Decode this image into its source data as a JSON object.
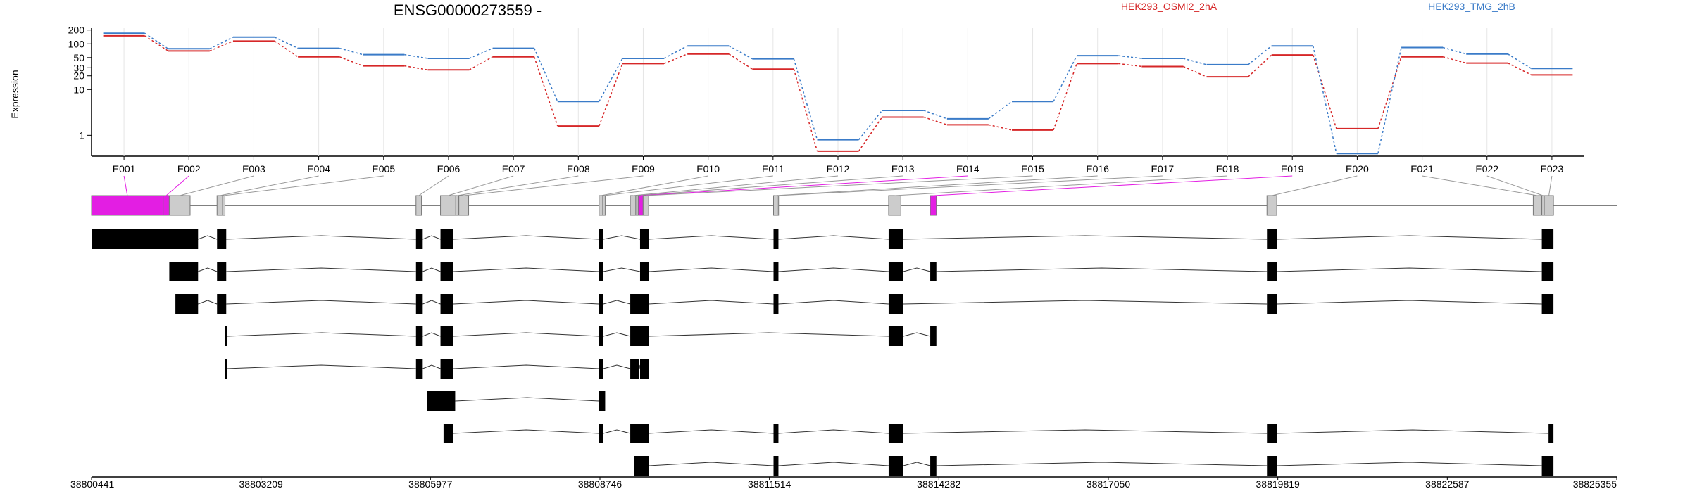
{
  "title": "ENSG00000273559 -",
  "legend": [
    {
      "label": "HEK293_OSMI2_2hA",
      "color": "#d62728"
    },
    {
      "label": "HEK293_TMG_2hB",
      "color": "#3a7bc8"
    }
  ],
  "colors": {
    "highlight": "#e31ee3",
    "exon_box": "#cccccc",
    "transcript": "#000000"
  },
  "chart_data": {
    "type": "line",
    "ylabel": "Expression",
    "y_scale": "log",
    "ylim": [
      0.35,
      220
    ],
    "y_ticks": [
      1,
      10,
      20,
      30,
      50,
      100,
      200
    ],
    "y_tick_labels": [
      "1",
      "10",
      "20",
      "30",
      "50",
      "100",
      "200"
    ],
    "categories": [
      "E001",
      "E002",
      "E003",
      "E004",
      "E005",
      "E006",
      "E007",
      "E008",
      "E009",
      "E010",
      "E011",
      "E012",
      "E013",
      "E014",
      "E015",
      "E016",
      "E017",
      "E018",
      "E019",
      "E020",
      "E021",
      "E022",
      "E023"
    ],
    "series": [
      {
        "name": "HEK293_OSMI2_2hA",
        "color": "#d62728",
        "values": [
          150,
          70,
          115,
          52,
          33,
          27,
          52,
          1.6,
          37,
          60,
          28,
          0.45,
          2.5,
          1.7,
          1.3,
          37,
          32,
          19,
          57,
          1.4,
          52,
          38,
          21
        ]
      },
      {
        "name": "HEK293_TMG_2hB",
        "color": "#3a7bc8",
        "values": [
          170,
          78,
          140,
          80,
          58,
          48,
          80,
          5.5,
          48,
          90,
          47,
          0.8,
          3.5,
          2.3,
          5.5,
          55,
          48,
          35,
          90,
          0.4,
          83,
          60,
          29
        ]
      }
    ]
  },
  "gene_model": {
    "coord_min": 38800441,
    "coord_max": 38825355,
    "axis_ticks": [
      "38800441",
      "38803209",
      "38805977",
      "38808746",
      "38811514",
      "38814282",
      "38817050",
      "38819819",
      "38822587",
      "38825355"
    ],
    "exon_segments": [
      {
        "id": "E001",
        "start": 38800441,
        "end": 38801611,
        "highlight": true
      },
      {
        "id": "E002",
        "start": 38801611,
        "end": 38801711,
        "highlight": true
      },
      {
        "id": "E003",
        "start": 38801711,
        "end": 38802051,
        "highlight": false
      },
      {
        "id": "E004",
        "start": 38802491,
        "end": 38802581,
        "highlight": false
      },
      {
        "id": "E005",
        "start": 38802581,
        "end": 38802621,
        "highlight": false
      },
      {
        "id": "E006",
        "start": 38805741,
        "end": 38805831,
        "highlight": false
      },
      {
        "id": "E007",
        "start": 38806141,
        "end": 38806391,
        "highlight": false
      },
      {
        "id": "E008",
        "start": 38806391,
        "end": 38806441,
        "highlight": false
      },
      {
        "id": "E009",
        "start": 38806441,
        "end": 38806601,
        "highlight": false
      },
      {
        "id": "E010",
        "start": 38808731,
        "end": 38808791,
        "highlight": false
      },
      {
        "id": "E011",
        "start": 38808791,
        "end": 38808831,
        "highlight": false
      },
      {
        "id": "E012",
        "start": 38809241,
        "end": 38809331,
        "highlight": false
      },
      {
        "id": "E013",
        "start": 38809331,
        "end": 38809371,
        "highlight": false
      },
      {
        "id": "E014",
        "start": 38809371,
        "end": 38809451,
        "highlight": true
      },
      {
        "id": "E015",
        "start": 38809451,
        "end": 38809541,
        "highlight": false
      },
      {
        "id": "E016",
        "start": 38811581,
        "end": 38811641,
        "highlight": false
      },
      {
        "id": "E017",
        "start": 38811641,
        "end": 38811661,
        "highlight": false
      },
      {
        "id": "E018",
        "start": 38813461,
        "end": 38813661,
        "highlight": false
      },
      {
        "id": "E019",
        "start": 38814141,
        "end": 38814241,
        "highlight": true
      },
      {
        "id": "E020",
        "start": 38819641,
        "end": 38819801,
        "highlight": false
      },
      {
        "id": "E021",
        "start": 38823991,
        "end": 38824131,
        "highlight": false
      },
      {
        "id": "E022",
        "start": 38824131,
        "end": 38824171,
        "highlight": false
      },
      {
        "id": "E023",
        "start": 38824171,
        "end": 38824321,
        "highlight": false
      }
    ],
    "transcripts": [
      {
        "exons": [
          [
            38800441,
            38802181
          ],
          [
            38802491,
            38802641
          ],
          [
            38805741,
            38805851
          ],
          [
            38806141,
            38806351
          ],
          [
            38808731,
            38808801
          ],
          [
            38809401,
            38809541
          ],
          [
            38811581,
            38811661
          ],
          [
            38813461,
            38813701
          ],
          [
            38819641,
            38819801
          ],
          [
            38824131,
            38824321
          ]
        ]
      },
      {
        "exons": [
          [
            38801711,
            38802181
          ],
          [
            38802491,
            38802641
          ],
          [
            38805741,
            38805851
          ],
          [
            38806141,
            38806351
          ],
          [
            38808731,
            38808801
          ],
          [
            38809401,
            38809541
          ],
          [
            38811581,
            38811661
          ],
          [
            38813461,
            38813701
          ],
          [
            38814141,
            38814241
          ],
          [
            38819641,
            38819801
          ],
          [
            38824131,
            38824321
          ]
        ]
      },
      {
        "exons": [
          [
            38801811,
            38802181
          ],
          [
            38802491,
            38802641
          ],
          [
            38805741,
            38805851
          ],
          [
            38806141,
            38806351
          ],
          [
            38808731,
            38808801
          ],
          [
            38809241,
            38809541
          ],
          [
            38811581,
            38811661
          ],
          [
            38813461,
            38813701
          ],
          [
            38819641,
            38819801
          ],
          [
            38824131,
            38824321
          ]
        ]
      },
      {
        "exons": [
          [
            38802621,
            38802661
          ],
          [
            38805741,
            38805851
          ],
          [
            38806141,
            38806351
          ],
          [
            38808731,
            38808801
          ],
          [
            38809241,
            38809541
          ],
          [
            38813461,
            38813701
          ],
          [
            38814141,
            38814241
          ]
        ]
      },
      {
        "exons": [
          [
            38802621,
            38802641
          ],
          [
            38805741,
            38805851
          ],
          [
            38806141,
            38806351
          ],
          [
            38808731,
            38808801
          ],
          [
            38809241,
            38809381
          ],
          [
            38809401,
            38809541
          ]
        ]
      },
      {
        "exons": [
          [
            38805921,
            38806381
          ],
          [
            38808731,
            38808831
          ]
        ]
      },
      {
        "exons": [
          [
            38806191,
            38806351
          ],
          [
            38808731,
            38808801
          ],
          [
            38809241,
            38809541
          ],
          [
            38811581,
            38811661
          ],
          [
            38813461,
            38813701
          ],
          [
            38819641,
            38819801
          ],
          [
            38824241,
            38824321
          ]
        ]
      },
      {
        "exons": [
          [
            38809301,
            38809541
          ],
          [
            38811581,
            38811661
          ],
          [
            38813461,
            38813701
          ],
          [
            38814141,
            38814241
          ],
          [
            38819641,
            38819801
          ],
          [
            38824131,
            38824321
          ]
        ]
      }
    ]
  }
}
